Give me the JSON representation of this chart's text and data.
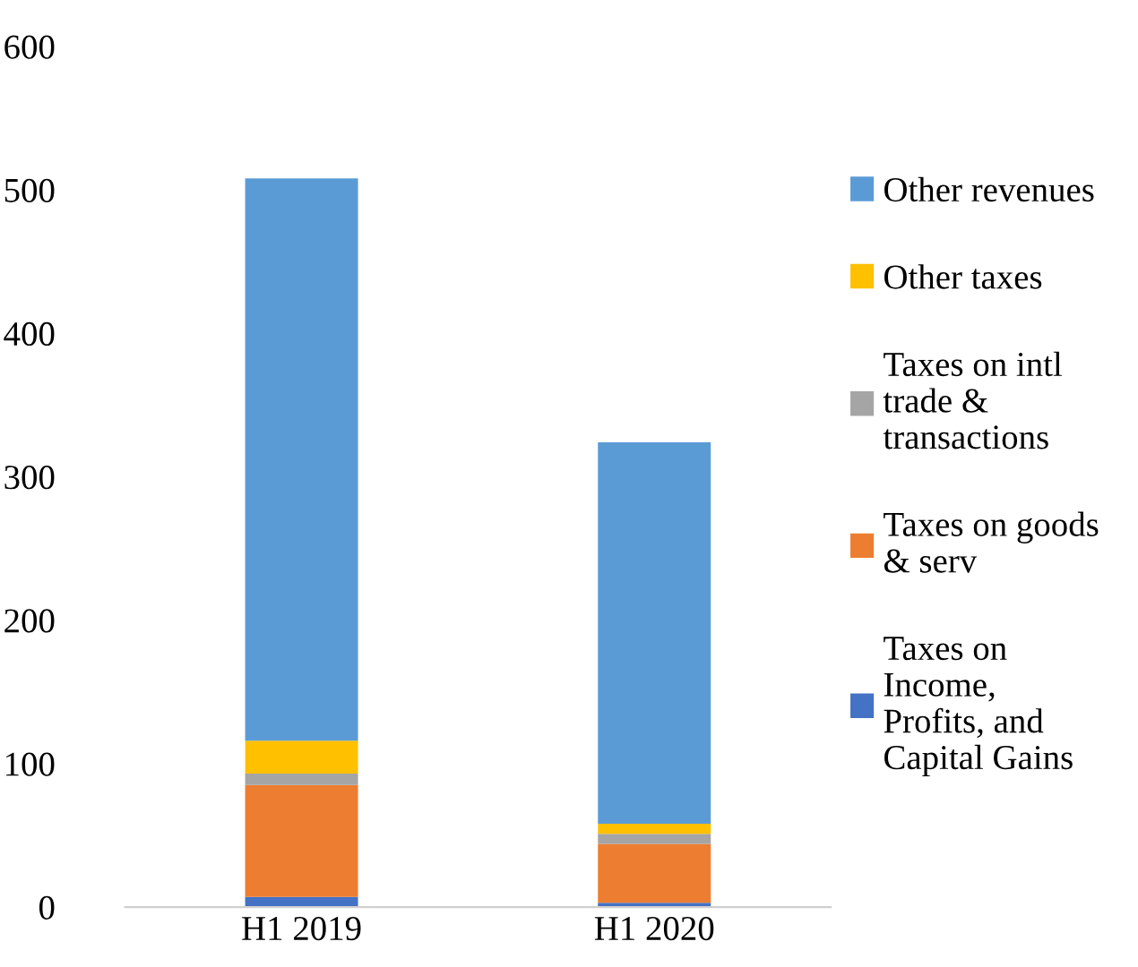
{
  "chart_data": {
    "type": "bar",
    "stacked": true,
    "categories": [
      "H1 2019",
      "H1 2020"
    ],
    "series": [
      {
        "name": "Taxes on Income, Profits, and Capital Gains",
        "color": "#4472c4",
        "values": [
          7,
          3
        ]
      },
      {
        "name": "Taxes on goods & serv",
        "color": "#ed7d31",
        "values": [
          78,
          41
        ]
      },
      {
        "name": "Taxes on intl trade & transactions",
        "color": "#a5a5a5",
        "values": [
          8,
          7
        ]
      },
      {
        "name": "Other taxes",
        "color": "#ffc000",
        "values": [
          23,
          7
        ]
      },
      {
        "name": "Other revenues",
        "color": "#5b9bd5",
        "values": [
          392,
          266
        ]
      }
    ],
    "ylim": [
      0,
      600
    ],
    "yticks": [
      0,
      100,
      200,
      300,
      400,
      500,
      600
    ],
    "grid": false,
    "legend": "right"
  }
}
